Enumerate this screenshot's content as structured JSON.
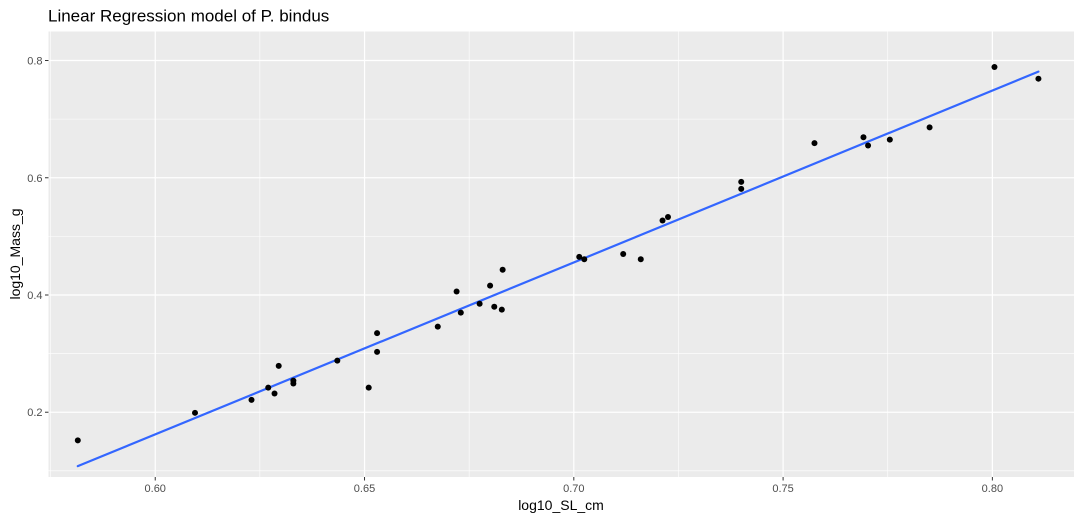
{
  "chart_data": {
    "type": "scatter",
    "title": "Linear Regression model of P. bindus",
    "xlabel": "log10_SL_cm",
    "ylabel": "log10_Mass_g",
    "xlim": [
      0.5745,
      0.8195
    ],
    "ylim": [
      0.0895,
      0.8495
    ],
    "x_ticks": [
      0.6,
      0.65,
      0.7,
      0.75,
      0.8
    ],
    "x_tick_labels": [
      "0.60",
      "0.65",
      "0.70",
      "0.75",
      "0.80"
    ],
    "y_ticks": [
      0.2,
      0.4,
      0.6,
      0.8
    ],
    "y_tick_labels": [
      "0.2",
      "0.4",
      "0.6",
      "0.8"
    ],
    "grid": true,
    "colors": {
      "panel_background": "#ebebeb",
      "grid_line": "#ffffff",
      "point": "#000000",
      "fit_line": "#3366ff"
    },
    "points": [
      {
        "x": 0.5815,
        "y": 0.152
      },
      {
        "x": 0.6095,
        "y": 0.199
      },
      {
        "x": 0.623,
        "y": 0.221
      },
      {
        "x": 0.627,
        "y": 0.242
      },
      {
        "x": 0.6285,
        "y": 0.232
      },
      {
        "x": 0.6295,
        "y": 0.279
      },
      {
        "x": 0.633,
        "y": 0.249
      },
      {
        "x": 0.633,
        "y": 0.254
      },
      {
        "x": 0.6435,
        "y": 0.288
      },
      {
        "x": 0.651,
        "y": 0.242
      },
      {
        "x": 0.653,
        "y": 0.303
      },
      {
        "x": 0.653,
        "y": 0.335
      },
      {
        "x": 0.6675,
        "y": 0.346
      },
      {
        "x": 0.672,
        "y": 0.406
      },
      {
        "x": 0.673,
        "y": 0.37
      },
      {
        "x": 0.6775,
        "y": 0.385
      },
      {
        "x": 0.68,
        "y": 0.416
      },
      {
        "x": 0.681,
        "y": 0.38
      },
      {
        "x": 0.6828,
        "y": 0.375
      },
      {
        "x": 0.683,
        "y": 0.443
      },
      {
        "x": 0.7013,
        "y": 0.465
      },
      {
        "x": 0.7025,
        "y": 0.461
      },
      {
        "x": 0.7118,
        "y": 0.47
      },
      {
        "x": 0.716,
        "y": 0.461
      },
      {
        "x": 0.7212,
        "y": 0.527
      },
      {
        "x": 0.7225,
        "y": 0.533
      },
      {
        "x": 0.74,
        "y": 0.581
      },
      {
        "x": 0.74,
        "y": 0.593
      },
      {
        "x": 0.7575,
        "y": 0.659
      },
      {
        "x": 0.7692,
        "y": 0.669
      },
      {
        "x": 0.7703,
        "y": 0.655
      },
      {
        "x": 0.7755,
        "y": 0.665
      },
      {
        "x": 0.785,
        "y": 0.686
      },
      {
        "x": 0.8005,
        "y": 0.789
      },
      {
        "x": 0.811,
        "y": 0.769
      }
    ],
    "fit_line": {
      "x": [
        0.5815,
        0.811
      ],
      "y": [
        0.108,
        0.781
      ]
    }
  }
}
